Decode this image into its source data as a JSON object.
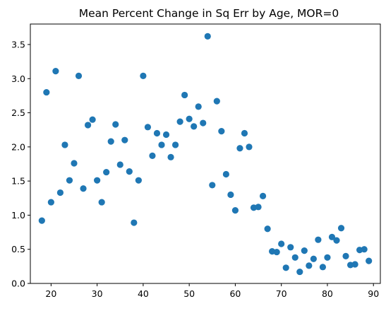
{
  "chart_data": {
    "type": "scatter",
    "title": "Mean Percent Change in Sq Err by Age, MOR=0",
    "xlabel": "",
    "ylabel": "",
    "xlim": [
      15.5,
      91.5
    ],
    "ylim": [
      0.0,
      3.8
    ],
    "xticks": [
      20,
      30,
      40,
      50,
      60,
      70,
      80,
      90
    ],
    "yticks": [
      0.0,
      0.5,
      1.0,
      1.5,
      2.0,
      2.5,
      3.0,
      3.5
    ],
    "xtick_labels": [
      "20",
      "30",
      "40",
      "50",
      "60",
      "70",
      "80",
      "90"
    ],
    "ytick_labels": [
      "0.0",
      "0.5",
      "1.0",
      "1.5",
      "2.0",
      "2.5",
      "3.0",
      "3.5"
    ],
    "grid": false,
    "marker_color": "#1f77b4",
    "series": [
      {
        "x": [
          18,
          19,
          20,
          21,
          22,
          23,
          24,
          25,
          26,
          27,
          28,
          29,
          30,
          31,
          32,
          33,
          34,
          35,
          36,
          37,
          38,
          39,
          40,
          41,
          42,
          43,
          44,
          45,
          46,
          47,
          48,
          49,
          50,
          51,
          52,
          53,
          54,
          55,
          56,
          57,
          58,
          59,
          60,
          61,
          62,
          63,
          64,
          65,
          66,
          67,
          68,
          69,
          70,
          71,
          72,
          73,
          74,
          75,
          76,
          77,
          78,
          79,
          80,
          81,
          82,
          83,
          84,
          85,
          86,
          87,
          88,
          89
        ],
        "y": [
          0.92,
          2.8,
          1.19,
          3.11,
          1.33,
          2.03,
          1.51,
          1.76,
          3.04,
          1.39,
          2.32,
          2.4,
          1.51,
          1.19,
          1.63,
          2.08,
          2.33,
          1.74,
          2.1,
          1.64,
          0.89,
          1.51,
          3.04,
          2.29,
          1.87,
          2.2,
          2.03,
          2.18,
          1.85,
          2.03,
          2.37,
          2.76,
          2.41,
          2.3,
          2.59,
          2.35,
          3.62,
          1.44,
          2.67,
          2.23,
          1.6,
          1.3,
          1.07,
          1.98,
          2.2,
          2.0,
          1.11,
          1.12,
          1.28,
          0.8,
          0.47,
          0.46,
          0.58,
          0.23,
          0.53,
          0.38,
          0.17,
          0.48,
          0.26,
          0.36,
          0.64,
          0.24,
          0.38,
          0.68,
          0.63,
          0.81,
          0.4,
          0.27,
          0.28,
          0.49,
          0.5,
          0.33
        ]
      }
    ]
  }
}
